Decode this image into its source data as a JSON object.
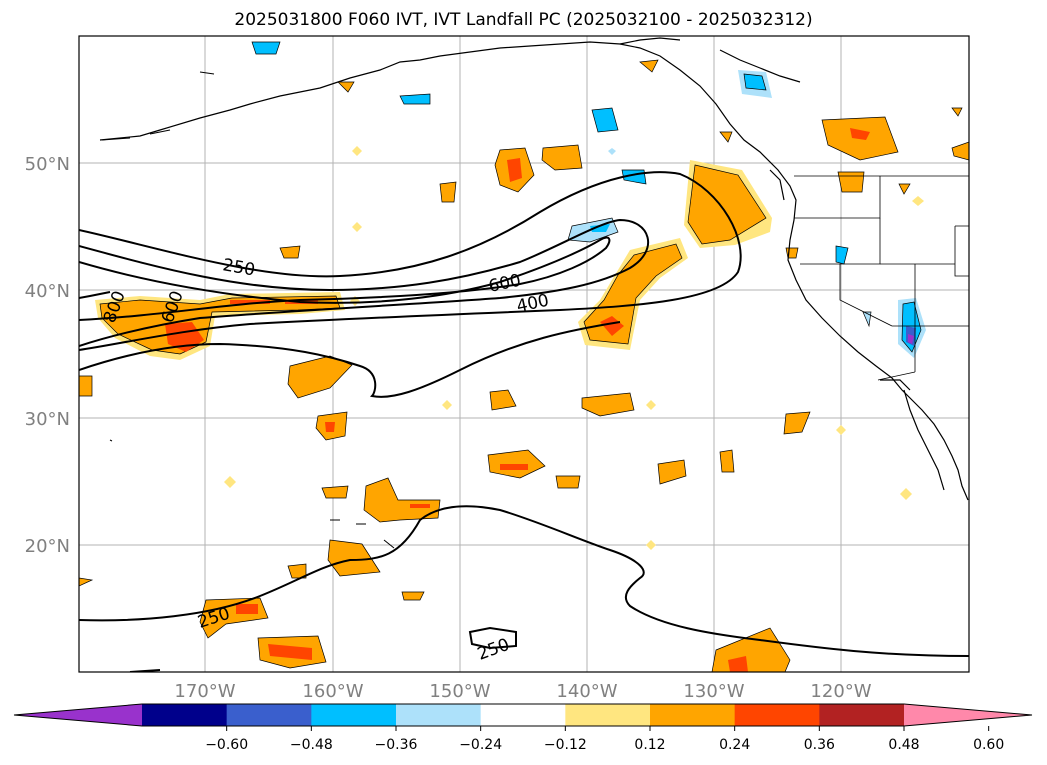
{
  "title": "2025031800 F060 IVT, IVT Landfall PC (2025032100 - 2025032312)",
  "map": {
    "lon_labels": [
      "170°W",
      "160°W",
      "150°W",
      "140°W",
      "130°W",
      "120°W"
    ],
    "lat_labels": [
      "50°N",
      "40°N",
      "30°N",
      "20°N"
    ],
    "contour_labels": [
      "250",
      "250",
      "250",
      "400",
      "600",
      "600",
      "800"
    ],
    "label_color": "#808080"
  },
  "colorbar": {
    "ticks": [
      "−0.60",
      "−0.48",
      "−0.36",
      "−0.24",
      "−0.12",
      "0.12",
      "0.24",
      "0.36",
      "0.48",
      "0.60"
    ],
    "colors": [
      "#9932CC",
      "#00008B",
      "#3A5FCD",
      "#00BFFF",
      "#ADE1FA",
      "#FFFFFF",
      "#FFE680",
      "#FFA500",
      "#FF4500",
      "#B22222",
      "#FF88AA"
    ]
  }
}
